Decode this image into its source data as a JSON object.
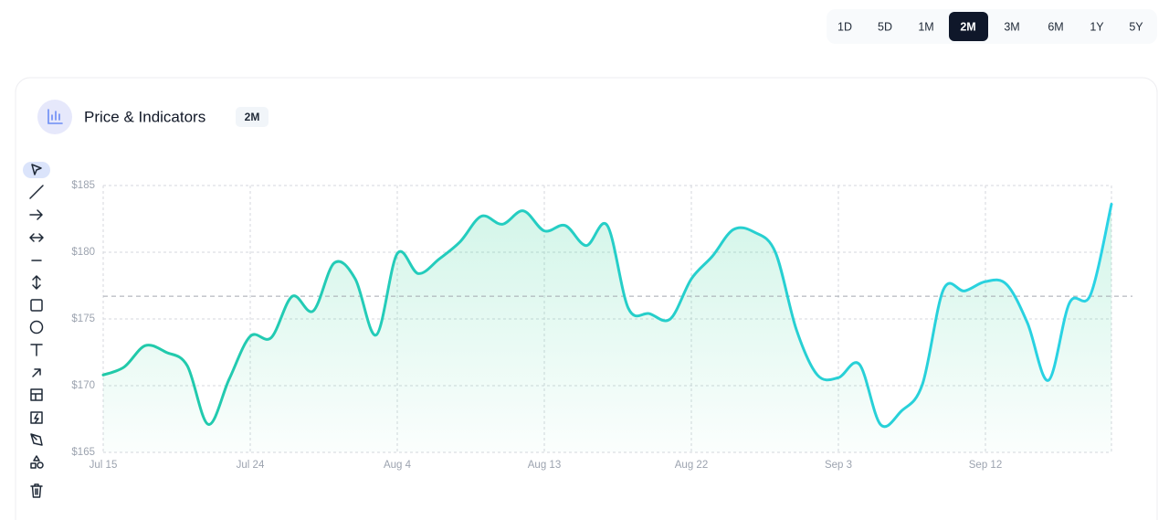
{
  "ranges": [
    "1D",
    "5D",
    "1M",
    "2M",
    "3M",
    "6M",
    "1Y",
    "5Y"
  ],
  "active_range": "2M",
  "header": {
    "title": "Price & Indicators",
    "badge": "2M"
  },
  "chart_data": {
    "type": "line",
    "categories": [
      "Jul 15",
      null,
      null,
      null,
      null,
      null,
      null,
      "Jul 24",
      null,
      null,
      null,
      null,
      null,
      null,
      "Aug 4",
      null,
      null,
      null,
      null,
      null,
      null,
      "Aug 13",
      null,
      null,
      null,
      null,
      null,
      null,
      "Aug 22",
      null,
      null,
      null,
      null,
      null,
      null,
      "Sep 3",
      null,
      null,
      null,
      null,
      null,
      null,
      "Sep 12",
      null,
      null,
      null,
      null,
      null,
      null
    ],
    "values": [
      170.8,
      171.4,
      173.0,
      172.5,
      171.5,
      167.1,
      170.5,
      173.7,
      173.6,
      176.7,
      175.6,
      179.2,
      178.0,
      173.8,
      179.9,
      178.4,
      179.5,
      180.8,
      182.7,
      182.1,
      183.1,
      181.6,
      182.0,
      180.5,
      182.0,
      175.8,
      175.4,
      175.0,
      178.0,
      179.7,
      181.7,
      181.5,
      180.0,
      174.2,
      170.8,
      170.6,
      171.6,
      167.1,
      168.1,
      170.1,
      177.2,
      177.1,
      177.8,
      177.6,
      174.7,
      170.4,
      176.2,
      176.8,
      183.6
    ],
    "color": "#22d3c5",
    "reference_line": 176.7,
    "ylim": [
      165,
      185
    ],
    "yticks": [
      {
        "value": 165,
        "label": "$165"
      },
      {
        "value": 170,
        "label": "$170"
      },
      {
        "value": 175,
        "label": "$175"
      },
      {
        "value": 180,
        "label": "$180"
      },
      {
        "value": 185,
        "label": "$185"
      }
    ],
    "grid": true
  }
}
